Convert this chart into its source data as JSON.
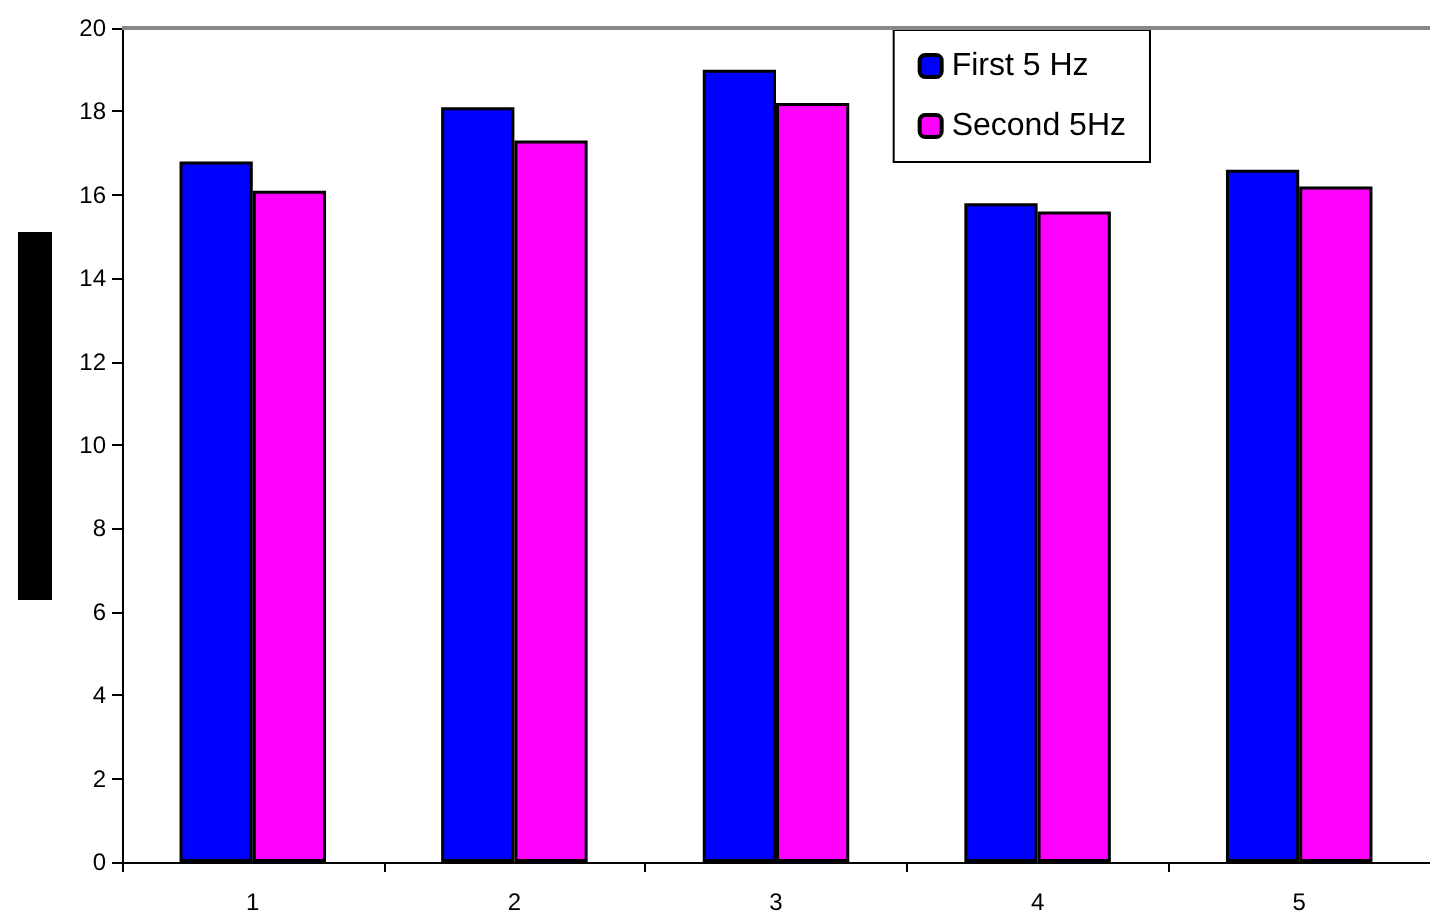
{
  "chart_data": {
    "type": "bar",
    "categories": [
      "1",
      "2",
      "3",
      "4",
      "5"
    ],
    "series": [
      {
        "name": "First 5 Hz",
        "color": "#0000ff",
        "values": [
          16.8,
          18.1,
          19.0,
          15.8,
          16.6
        ]
      },
      {
        "name": "Second 5Hz",
        "color": "#ff00ff",
        "values": [
          16.1,
          17.3,
          18.2,
          15.6,
          16.2
        ]
      }
    ],
    "ylim": [
      0,
      20
    ],
    "yticks": [
      0,
      2,
      4,
      6,
      8,
      10,
      12,
      14,
      16,
      18,
      20
    ],
    "grid": false,
    "legend": "top right"
  }
}
